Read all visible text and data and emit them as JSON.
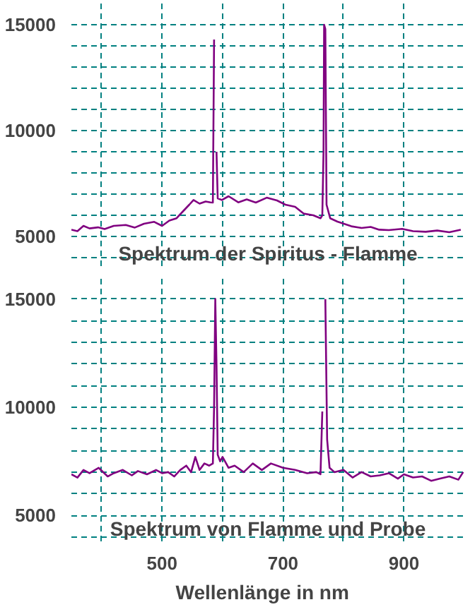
{
  "chart_data": [
    {
      "type": "line",
      "title": "Spektrum der Spiritus - Flamme",
      "tick_labels": "y",
      "grid": true,
      "marker": "none",
      "line_style": "solid",
      "xlim": [
        350,
        1000
      ],
      "ylim": [
        3600,
        16000
      ],
      "xticks": [
        {
          "value": 400,
          "label": null
        },
        {
          "value": 500,
          "label": null
        },
        {
          "value": 600,
          "label": null
        },
        {
          "value": 700,
          "label": null
        },
        {
          "value": 800,
          "label": null
        },
        {
          "value": 900,
          "label": null
        }
      ],
      "yticks": [
        {
          "value": 4000,
          "label": null
        },
        5000,
        {
          "value": 6000,
          "label": null
        },
        {
          "value": 7000,
          "label": null
        },
        {
          "value": 8000,
          "label": null
        },
        {
          "value": 9000,
          "label": null
        },
        10000,
        {
          "value": 11000,
          "label": null
        },
        {
          "value": 12000,
          "label": null
        },
        {
          "value": 13000,
          "label": null
        },
        {
          "value": 14000,
          "label": null
        },
        15000
      ],
      "series": [
        {
          "color": "#800080",
          "x": [
            350,
            360,
            370,
            380,
            394,
            405,
            420,
            440,
            455,
            470,
            487,
            500,
            512,
            524,
            535,
            545,
            552,
            562,
            572,
            580,
            584,
            586,
            588,
            590,
            592,
            599,
            610,
            626,
            640,
            655,
            673,
            690,
            704,
            720,
            734,
            750,
            762,
            765,
            767,
            768,
            770,
            772,
            778,
            790,
            813,
            830,
            845,
            859,
            875,
            897,
            915,
            936,
            955,
            975,
            994
          ],
          "values": [
            5320,
            5250,
            5500,
            5380,
            5430,
            5350,
            5500,
            5540,
            5420,
            5600,
            5690,
            5500,
            5750,
            5860,
            6200,
            6500,
            6720,
            6550,
            6650,
            6610,
            6600,
            14300,
            null,
            9000,
            6800,
            6720,
            6900,
            6610,
            6750,
            6600,
            6830,
            6700,
            6500,
            6400,
            6080,
            6000,
            5860,
            6000,
            9000,
            15000,
            14800,
            6500,
            5860,
            5700,
            5480,
            5400,
            5450,
            5320,
            5300,
            5360,
            5250,
            5220,
            5280,
            5200,
            5320
          ]
        }
      ]
    },
    {
      "type": "line",
      "title": "Spektrum von Flamme und Probe",
      "xlabel": "Wellenlänge  in  nm",
      "grid": true,
      "marker": "none",
      "line_style": "solid",
      "xlim": [
        350,
        1000
      ],
      "ylim": [
        3800,
        16000
      ],
      "xticks": [
        {
          "value": 400,
          "label": null
        },
        500,
        {
          "value": 600,
          "label": null
        },
        700,
        {
          "value": 800,
          "label": null
        },
        900
      ],
      "yticks": [
        {
          "value": 4000,
          "label": null
        },
        5000,
        {
          "value": 6000,
          "label": null
        },
        {
          "value": 7000,
          "label": null
        },
        {
          "value": 8000,
          "label": null
        },
        {
          "value": 9000,
          "label": null
        },
        10000,
        {
          "value": 11000,
          "label": null
        },
        {
          "value": 12000,
          "label": null
        },
        {
          "value": 13000,
          "label": null
        },
        {
          "value": 14000,
          "label": null
        },
        15000
      ],
      "series": [
        {
          "color": "#800080",
          "x": [
            350,
            360,
            370,
            380,
            395,
            410,
            420,
            435,
            450,
            460,
            475,
            490,
            500,
            510,
            520,
            530,
            540,
            548,
            555,
            562,
            570,
            578,
            584,
            586,
            588,
            590,
            592,
            596,
            600,
            610,
            620,
            635,
            650,
            665,
            680,
            700,
            720,
            740,
            755,
            762,
            765,
            767,
            768,
            770,
            773,
            777,
            785,
            800,
            815,
            830,
            845,
            860,
            875,
            890,
            900,
            915,
            930,
            945,
            960,
            975,
            990,
            998
          ],
          "values": [
            6900,
            6750,
            7100,
            6950,
            7200,
            6800,
            6950,
            7100,
            6850,
            7050,
            6900,
            7100,
            6950,
            7000,
            6800,
            7100,
            7300,
            7000,
            7700,
            7100,
            7400,
            7300,
            7400,
            10000,
            15000,
            12000,
            7800,
            7500,
            7700,
            7200,
            7300,
            7000,
            7400,
            7100,
            7400,
            7200,
            7100,
            6950,
            7000,
            6900,
            9800,
            null,
            null,
            15000,
            8500,
            7200,
            7000,
            7100,
            6750,
            7000,
            6800,
            6850,
            6950,
            6700,
            6900,
            6750,
            6800,
            6600,
            6700,
            6800,
            6650,
            7000
          ]
        }
      ]
    }
  ]
}
